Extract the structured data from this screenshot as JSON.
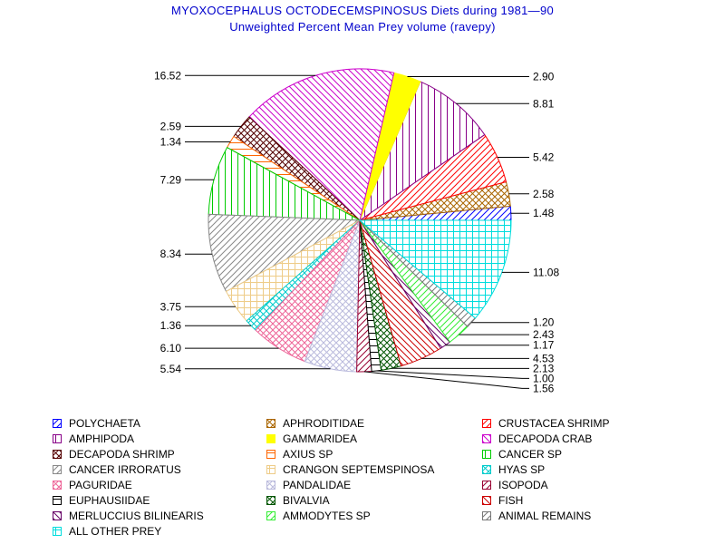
{
  "title": "MYOXOCEPHALUS OCTODECEMSPINOSUS Diets during 1981—90",
  "subtitle": "Unweighted Percent Mean Prey volume (ravepy)",
  "chart_data": {
    "type": "pie",
    "slices": [
      {
        "label": "POLYCHAETA",
        "value": 1.48,
        "value_label": "1.48",
        "color": "#0000ff",
        "pattern": "diag-up"
      },
      {
        "label": "APHRODITIDAE",
        "value": 2.58,
        "value_label": "2.58",
        "color": "#aa6600",
        "pattern": "crosshatch-diag"
      },
      {
        "label": "CRUSTACEA SHRIMP",
        "value": 5.42,
        "value_label": "5.42",
        "color": "#ff0000",
        "pattern": "diag-up"
      },
      {
        "label": "AMPHIPODA",
        "value": 8.81,
        "value_label": "8.81",
        "color": "#880088",
        "pattern": "vertical"
      },
      {
        "label": "GAMMARIDEA",
        "value": 2.9,
        "value_label": "2.90",
        "color": "#ffff00",
        "pattern": "solid"
      },
      {
        "label": "DECAPODA CRAB",
        "value": 16.52,
        "value_label": "16.52",
        "color": "#cc00cc",
        "pattern": "diag-down"
      },
      {
        "label": "DECAPODA SHRIMP",
        "value": 2.59,
        "value_label": "2.59",
        "color": "#550000",
        "pattern": "crosshatch-diag"
      },
      {
        "label": "AXIUS SP",
        "value": 1.34,
        "value_label": "1.34",
        "color": "#ff6600",
        "pattern": "horizontal"
      },
      {
        "label": "CANCER SP",
        "value": 7.29,
        "value_label": "7.29",
        "color": "#00cc00",
        "pattern": "vertical"
      },
      {
        "label": "CANCER IRRORATUS",
        "value": 8.34,
        "value_label": "8.34",
        "color": "#888888",
        "pattern": "diag-up"
      },
      {
        "label": "CRANGON SEPTEMSPINOSA",
        "value": 3.75,
        "value_label": "3.75",
        "color": "#eecc88",
        "pattern": "crosshatch"
      },
      {
        "label": "HYAS SP",
        "value": 1.36,
        "value_label": "1.36",
        "color": "#00cccc",
        "pattern": "crosshatch-diag"
      },
      {
        "label": "PAGURIDAE",
        "value": 6.1,
        "value_label": "6.10",
        "color": "#ee6699",
        "pattern": "crosshatch-diag"
      },
      {
        "label": "PANDALIDAE",
        "value": 5.54,
        "value_label": "5.54",
        "color": "#bbbbdd",
        "pattern": "crosshatch-diag"
      },
      {
        "label": "ISOPODA",
        "value": 1.56,
        "value_label": "1.56",
        "color": "#990033",
        "pattern": "diag-up"
      },
      {
        "label": "EUPHAUSIIDAE",
        "value": 1.0,
        "value_label": "1.00",
        "color": "#000000",
        "pattern": "horizontal"
      },
      {
        "label": "BIVALVIA",
        "value": 2.13,
        "value_label": "2.13",
        "color": "#005500",
        "pattern": "crosshatch-diag"
      },
      {
        "label": "FISH",
        "value": 4.53,
        "value_label": "4.53",
        "color": "#cc0000",
        "pattern": "diag-down"
      },
      {
        "label": "MERLUCCIUS BILINEARIS",
        "value": 1.17,
        "value_label": "1.17",
        "color": "#660066",
        "pattern": "diag-down"
      },
      {
        "label": "AMMODYTES SP",
        "value": 2.43,
        "value_label": "2.43",
        "color": "#33ee33",
        "pattern": "diag-up"
      },
      {
        "label": "ANIMAL REMAINS",
        "value": 1.2,
        "value_label": "1.20",
        "color": "#777777",
        "pattern": "diag-up"
      },
      {
        "label": "ALL OTHER PREY",
        "value": 11.08,
        "value_label": "11.08",
        "color": "#00dddd",
        "pattern": "crosshatch"
      }
    ],
    "start_angle_deg": 0,
    "direction": "counterclockwise",
    "legend_position": "bottom",
    "legend_columns": 3
  }
}
